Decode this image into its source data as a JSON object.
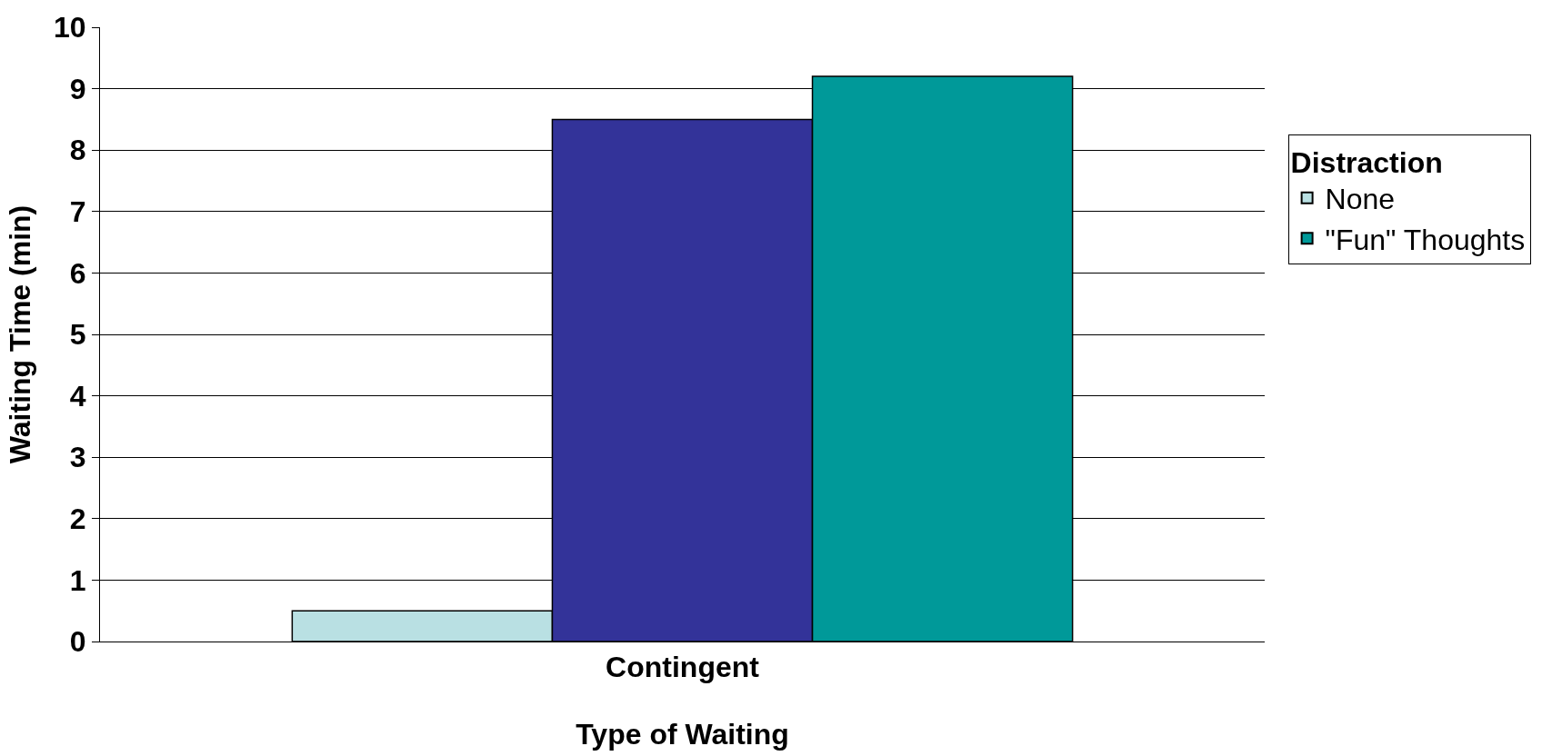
{
  "chart_data": {
    "type": "bar",
    "xlabel": "Type of Waiting",
    "ylabel": "Waiting Time (min)",
    "legend_title": "Distraction",
    "categories": [
      "Contingent"
    ],
    "series": [
      {
        "name": "None",
        "color": "#b9e0e3",
        "values": [
          0.5
        ]
      },
      {
        "color": "#333399",
        "values": [
          8.5
        ]
      },
      {
        "name": "\"Fun\" Thoughts",
        "color": "#009999",
        "values": [
          9.2
        ]
      }
    ],
    "ylim": [
      0,
      10
    ],
    "yticks": [
      0,
      1,
      2,
      3,
      4,
      5,
      6,
      7,
      8,
      9,
      10
    ],
    "grid": "y",
    "legend": "right"
  }
}
